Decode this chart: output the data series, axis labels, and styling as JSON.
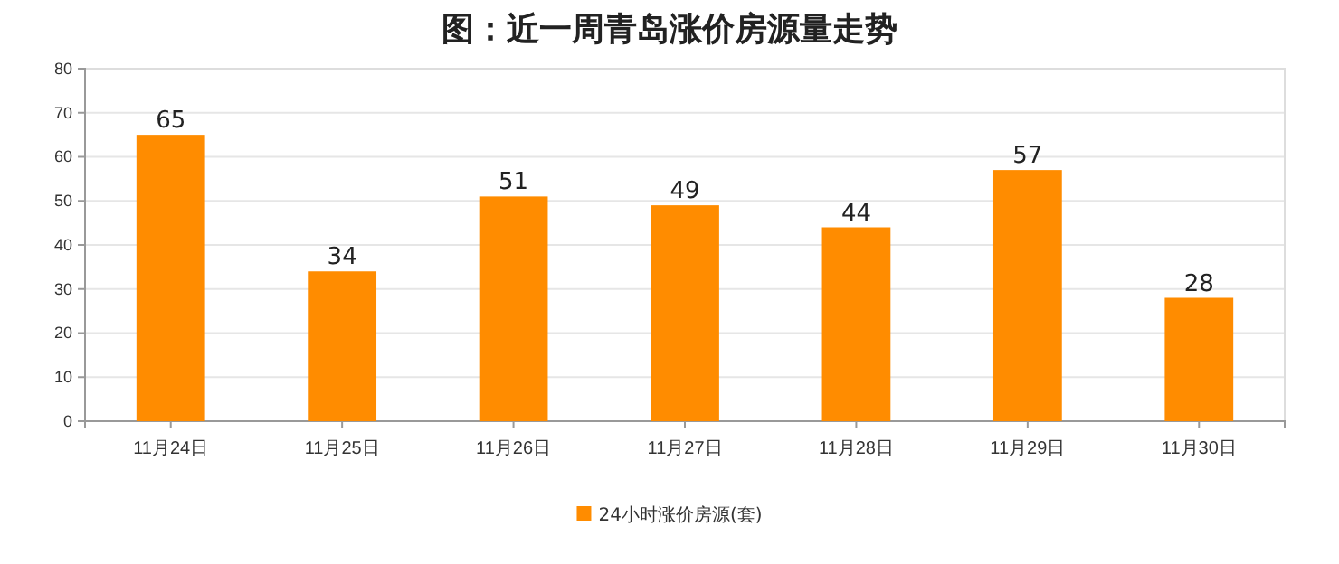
{
  "chart_data": {
    "type": "bar",
    "title": "图：近一周青岛涨价房源量走势",
    "categories": [
      "11月24日",
      "11月25日",
      "11月26日",
      "11月27日",
      "11月28日",
      "11月29日",
      "11月30日"
    ],
    "series": [
      {
        "name": "24小时涨价房源(套)",
        "color": "#ff8c00",
        "values": [
          65,
          34,
          51,
          49,
          44,
          57,
          28
        ]
      }
    ],
    "ylim": [
      0,
      80
    ],
    "yticks": [
      0,
      10,
      20,
      30,
      40,
      50,
      60,
      70,
      80
    ],
    "grid": "y",
    "legend": "bottom",
    "data_labels": true
  }
}
